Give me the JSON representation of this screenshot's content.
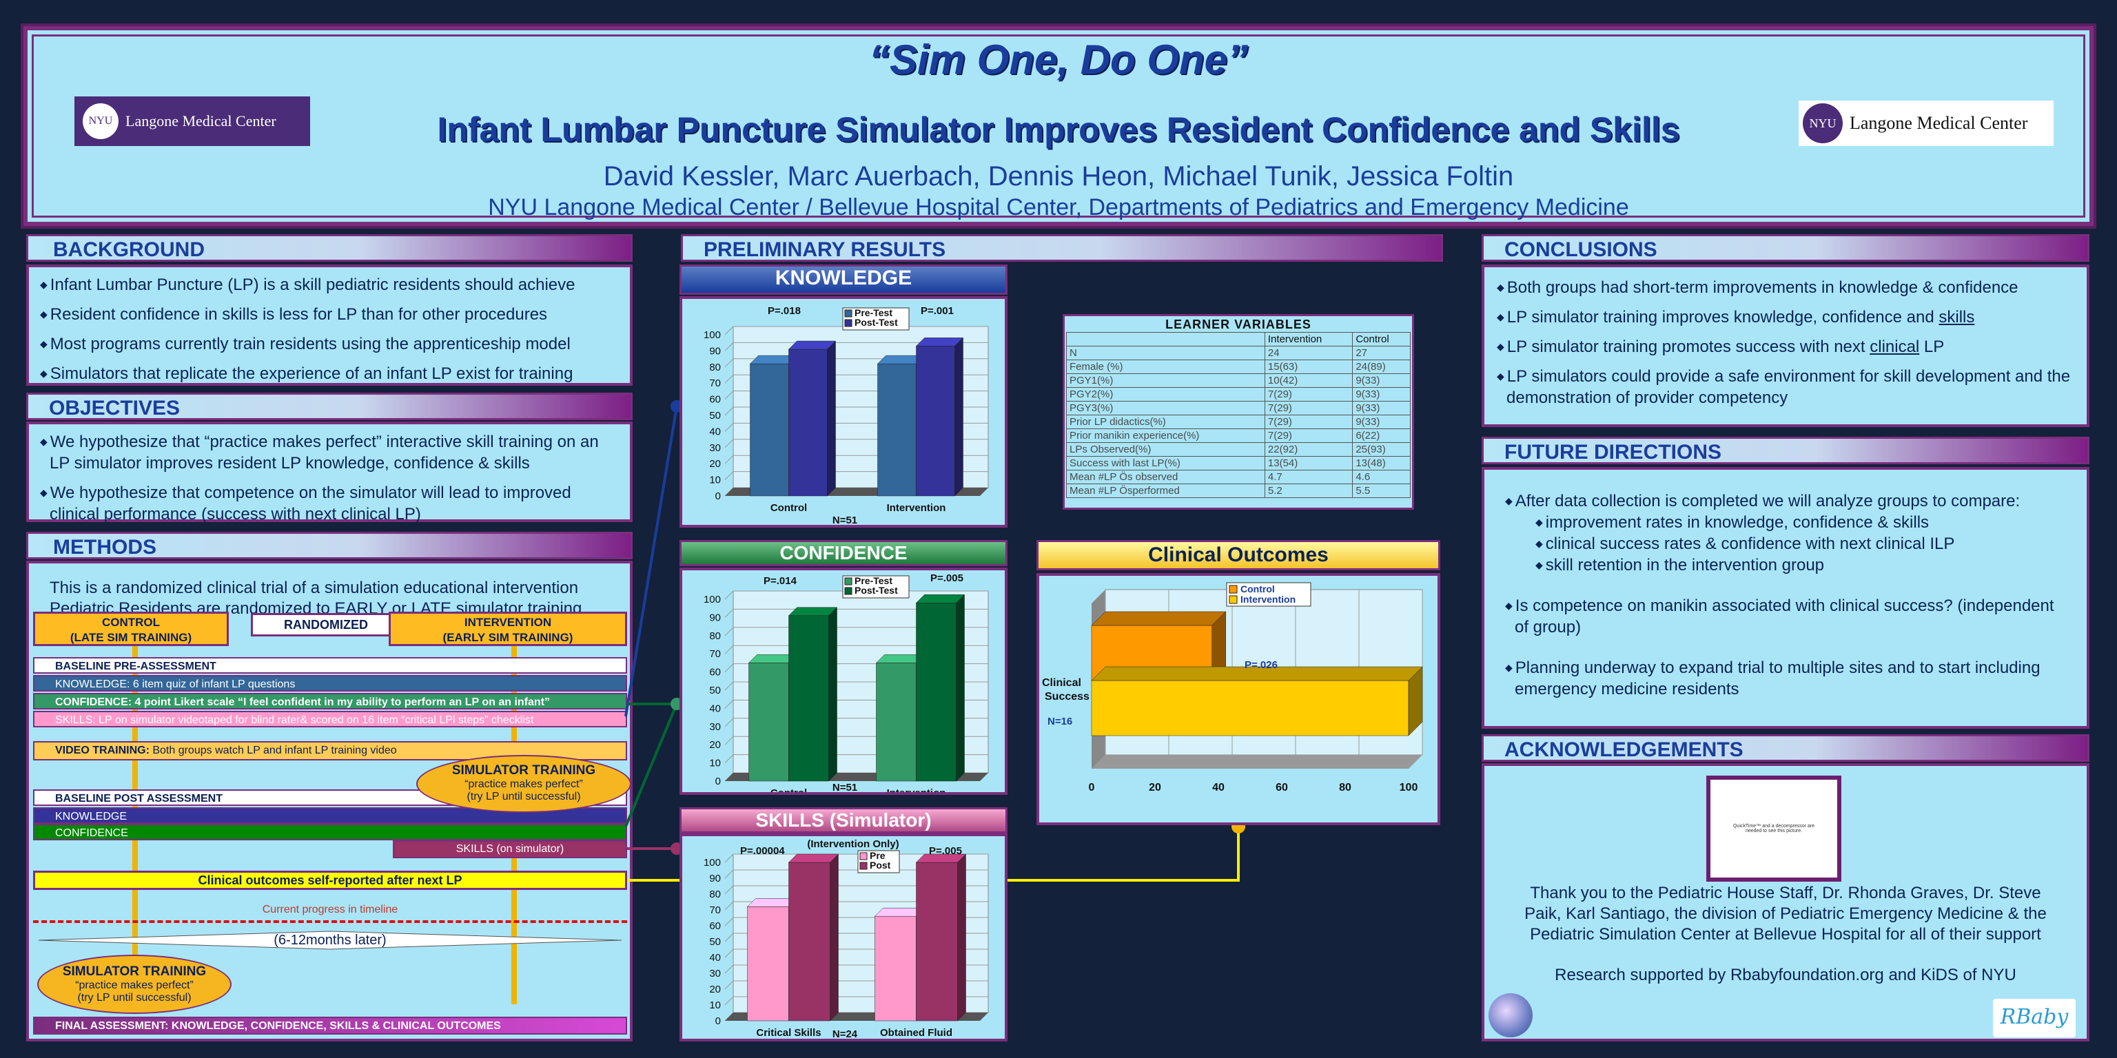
{
  "header": {
    "title": "“Sim One, Do One”",
    "subtitle": "Infant Lumbar Puncture Simulator Improves Resident Confidence and Skills",
    "authors": "David Kessler, Marc Auerbach, Dennis Heon, Michael Tunik, Jessica Foltin",
    "affiliation": "NYU Langone Medical Center / Bellevue Hospital Center, Departments of Pediatrics and Emergency Medicine",
    "logo_left": {
      "badge": "NYU",
      "text": "Langone Medical Center"
    },
    "logo_right": {
      "badge": "NYU",
      "text": "Langone Medical Center"
    }
  },
  "background": {
    "heading": "BACKGROUND",
    "bullets": [
      "Infant Lumbar Puncture (LP) is a skill pediatric residents should achieve",
      "Resident confidence in skills is less for LP than for other procedures",
      "Most programs currently train residents using the apprenticeship model",
      "Simulators that replicate the experience of an infant LP exist for training"
    ]
  },
  "objectives": {
    "heading": "OBJECTIVES",
    "bullets": [
      "We hypothesize that “practice makes perfect” interactive skill training on an LP simulator improves resident LP knowledge, confidence & skills",
      "We hypothesize that competence on the simulator will lead to improved clinical performance (success with next clinical LP)"
    ]
  },
  "methods": {
    "heading": "METHODS",
    "intro1": "This is a randomized clinical trial of a simulation educational intervention",
    "intro2": "Pediatric Residents are randomized to EARLY or LATE simulator training",
    "control_label": "CONTROL\n(LATE SIM TRAINING)",
    "randomized_label": "RANDOMIZED",
    "intervention_label": "INTERVENTION\n(EARLY SIM TRAINING)",
    "baseline_pre": "BASELINE PRE-ASSESSMENT",
    "knowledge_pre": "KNOWLEDGE: 6 item quiz of infant LP questions",
    "confidence_pre": "CONFIDENCE: 4 point Likert scale “I feel confident in my ability to perform an LP on an infant”",
    "skills_pre": "SKILLS: LP on simulator videotaped for blind rater& scored on 16 item “critical LPl steps” checklist",
    "video_bold": "VIDEO TRAINING:",
    "video_rest": " Both groups watch LP and infant LP training video",
    "sim_training_title": "SIMULATOR TRAINING",
    "sim_training_sub1": "“practice makes perfect”",
    "sim_training_sub2": "(try LP until successful)",
    "baseline_post": "BASELINE POST ASSESSMENT",
    "knowledge_post": "KNOWLEDGE",
    "confidence_post": "CONFIDENCE",
    "skills_post": "SKILLS (on simulator)",
    "clinical_outcomes": "Clinical outcomes self-reported after next LP",
    "current_progress": "Current progress in timeline",
    "months_later": "(6-12months later)",
    "sim_training2_title": "SIMULATOR TRAINING",
    "sim_training2_sub1": "“practice makes perfect”",
    "sim_training2_sub2": "(try LP until successful)",
    "final_assessment": "FINAL ASSESSMENT: KNOWLEDGE, CONFIDENCE, SKILLS & CLINICAL OUTCOMES"
  },
  "results": {
    "heading": "PRELIMINARY RESULTS",
    "knowledge_title": "KNOWLEDGE",
    "confidence_title": "CONFIDENCE",
    "skills_title": "SKILLS (Simulator)",
    "clinical_title": "Clinical Outcomes"
  },
  "learner": {
    "title": "LEARNER VARIABLES",
    "columns": [
      "",
      "Intervention",
      "Control"
    ],
    "rows": [
      [
        "N",
        "24",
        "27"
      ],
      [
        "Female (%)",
        "15(63)",
        "24(89)"
      ],
      [
        "PGY1(%)",
        "10(42)",
        "9(33)"
      ],
      [
        "PGY2(%)",
        "7(29)",
        "9(33)"
      ],
      [
        "PGY3(%)",
        "7(29)",
        "9(33)"
      ],
      [
        "Prior LP didactics(%)",
        "7(29)",
        "9(33)"
      ],
      [
        "Prior manikin experience(%)",
        "7(29)",
        "6(22)"
      ],
      [
        "LPs Observed(%)",
        "22(92)",
        "25(93)"
      ],
      [
        "Success with last LP(%)",
        "13(54)",
        "13(48)"
      ],
      [
        "Mean #LP Ös observed",
        "4.7",
        "4.6"
      ],
      [
        "Mean #LP Ösperformed",
        "5.2",
        "5.5"
      ]
    ]
  },
  "chart_data": [
    {
      "type": "bar",
      "title": "KNOWLEDGE",
      "categories": [
        "Control",
        "Intervention"
      ],
      "series": [
        {
          "name": "Pre-Test",
          "values": [
            82,
            82
          ]
        },
        {
          "name": "Post-Test",
          "values": [
            91,
            93
          ]
        }
      ],
      "ylim": [
        0,
        100
      ],
      "annotations": [
        "P=.018",
        "P=.001",
        "N=51"
      ],
      "colors": [
        "#336699",
        "#333399"
      ]
    },
    {
      "type": "bar",
      "title": "CONFIDENCE",
      "categories": [
        "Control",
        "Intervention"
      ],
      "series": [
        {
          "name": "Pre-Test",
          "values": [
            65,
            65
          ]
        },
        {
          "name": "Post-Test",
          "values": [
            91,
            98
          ]
        }
      ],
      "ylim": [
        0,
        100
      ],
      "annotations": [
        "P=.014",
        "P=.005",
        "N=51"
      ],
      "colors": [
        "#339966",
        "#006633"
      ]
    },
    {
      "type": "bar",
      "title": "SKILLS (Simulator)",
      "categories": [
        "Critical Skills",
        "Obtained Fluid"
      ],
      "series": [
        {
          "name": "Pre",
          "values": [
            72,
            66
          ]
        },
        {
          "name": "Post",
          "values": [
            100,
            100
          ]
        }
      ],
      "ylim": [
        0,
        100
      ],
      "annotations": [
        "(Intervention Only)",
        "P=.00004",
        "P=.005",
        "N=24"
      ],
      "colors": [
        "#ff99cc",
        "#993366"
      ]
    },
    {
      "type": "bar",
      "orientation": "horizontal",
      "title": "Clinical Outcomes",
      "categories": [
        "Clinical Success"
      ],
      "series": [
        {
          "name": "Control",
          "values": [
            38
          ]
        },
        {
          "name": "Intervention",
          "values": [
            100
          ]
        }
      ],
      "xlim": [
        0,
        100
      ],
      "xticks": [
        0,
        20,
        40,
        60,
        80,
        100
      ],
      "annotations": [
        "P=.026",
        "N=16"
      ],
      "colors": [
        "#ff9900",
        "#ffcc00"
      ]
    }
  ],
  "conclusions": {
    "heading": "CONCLUSIONS",
    "b1": "Both groups had short-term improvements in knowledge & confidence",
    "b2_pre": "LP simulator training improves knowledge, confidence and ",
    "b2_u": "skills",
    "b3_pre": "LP simulator training promotes success with next ",
    "b3_u": "clinical",
    "b3_post": " LP",
    "b4": "LP simulators could provide a safe environment for skill development and the demonstration of provider competency"
  },
  "future": {
    "heading": "FUTURE DIRECTIONS",
    "b1": "After data collection is completed we will analyze groups to compare:",
    "subs": [
      "improvement rates in knowledge, confidence & skills",
      "clinical success rates & confidence with next clinical ILP",
      "skill retention in the intervention group"
    ],
    "b2": "Is competence on manikin associated with clinical success? (independent of group)",
    "b3": "Planning underway to expand trial to multiple sites and to start including emergency medicine residents"
  },
  "acknowledgements": {
    "heading": "ACKNOWLEDGEMENTS",
    "thanks": "Thank you to the Pediatric House Staff, Dr. Rhonda Graves, Dr. Steve Paik, Karl Santiago, the division of Pediatric Emergency Medicine & the Pediatric Simulation Center at Bellevue Hospital for all of their support",
    "support": "Research supported by Rbabyfoundation.org and KiDS of NYU",
    "logo_text": "RBaby",
    "placeholder": "QuickTime™ and a decompressor are needed to see this picture."
  }
}
